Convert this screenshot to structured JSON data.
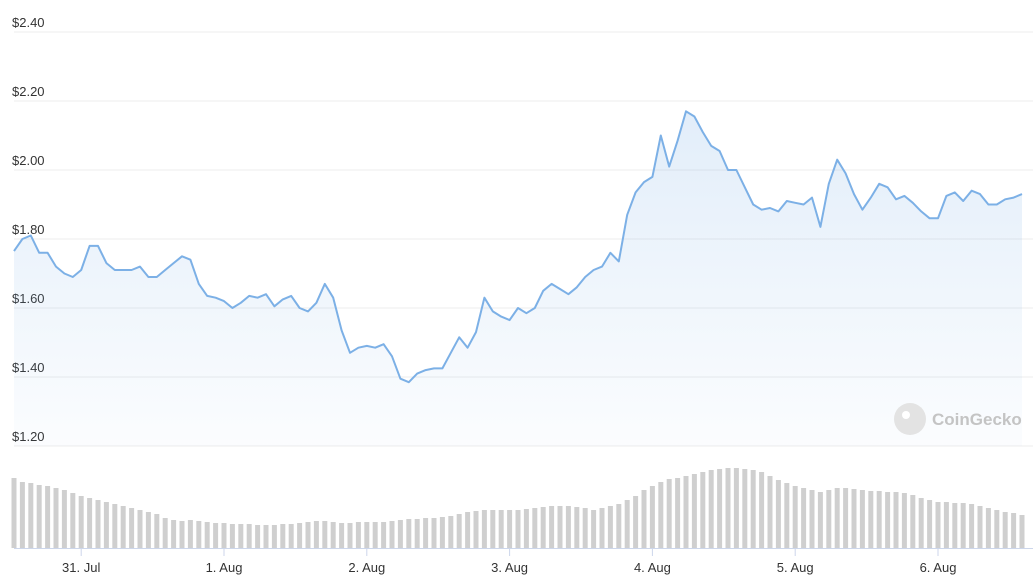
{
  "chart_data": {
    "type": "line",
    "watermark": "CoinGecko",
    "line_color": "#7cb0e6",
    "volume_color": "#cfcfcf",
    "grid": true,
    "ylim": [
      1.2,
      2.4
    ],
    "yticks": [
      {
        "value": 1.2,
        "label": "$1.20"
      },
      {
        "value": 1.4,
        "label": "$1.40"
      },
      {
        "value": 1.6,
        "label": "$1.60"
      },
      {
        "value": 1.8,
        "label": "$1.80"
      },
      {
        "value": 2.0,
        "label": "$2.00"
      },
      {
        "value": 2.2,
        "label": "$2.20"
      },
      {
        "value": 2.4,
        "label": "$2.40"
      }
    ],
    "categories": [
      null,
      null,
      null,
      null,
      null,
      null,
      null,
      null,
      "31. Jul",
      null,
      null,
      null,
      null,
      null,
      null,
      null,
      null,
      null,
      null,
      null,
      null,
      null,
      null,
      null,
      null,
      "1. Aug",
      null,
      null,
      null,
      null,
      null,
      null,
      null,
      null,
      null,
      null,
      null,
      null,
      null,
      null,
      null,
      null,
      "2. Aug",
      null,
      null,
      null,
      null,
      null,
      null,
      null,
      null,
      null,
      null,
      null,
      null,
      null,
      null,
      null,
      null,
      "3. Aug",
      null,
      null,
      null,
      null,
      null,
      null,
      null,
      null,
      null,
      null,
      null,
      null,
      null,
      null,
      null,
      null,
      "4. Aug",
      null,
      null,
      null,
      null,
      null,
      null,
      null,
      null,
      null,
      null,
      null,
      null,
      null,
      null,
      null,
      null,
      "5. Aug",
      null,
      null,
      null,
      null,
      null,
      null,
      null,
      null,
      null,
      null,
      null,
      null,
      null,
      null,
      null,
      null,
      "6. Aug",
      null,
      null,
      null,
      null,
      null,
      null,
      null,
      null,
      null,
      null
    ],
    "values": [
      1.765,
      1.8,
      1.81,
      1.76,
      1.76,
      1.72,
      1.7,
      1.69,
      1.71,
      1.78,
      1.78,
      1.73,
      1.71,
      1.71,
      1.71,
      1.72,
      1.69,
      1.69,
      1.71,
      1.73,
      1.75,
      1.74,
      1.67,
      1.635,
      1.63,
      1.62,
      1.6,
      1.615,
      1.635,
      1.63,
      1.64,
      1.605,
      1.625,
      1.635,
      1.6,
      1.59,
      1.615,
      1.67,
      1.63,
      1.535,
      1.47,
      1.485,
      1.49,
      1.485,
      1.495,
      1.46,
      1.395,
      1.385,
      1.41,
      1.42,
      1.425,
      1.425,
      1.47,
      1.515,
      1.485,
      1.53,
      1.63,
      1.59,
      1.575,
      1.565,
      1.6,
      1.585,
      1.6,
      1.65,
      1.67,
      1.655,
      1.64,
      1.66,
      1.69,
      1.71,
      1.72,
      1.76,
      1.735,
      1.87,
      1.935,
      1.965,
      1.98,
      2.1,
      2.01,
      2.085,
      2.17,
      2.155,
      2.11,
      2.07,
      2.055,
      2.0,
      2.0,
      1.95,
      1.9,
      1.885,
      1.89,
      1.88,
      1.91,
      1.905,
      1.9,
      1.92,
      1.835,
      1.96,
      2.03,
      1.99,
      1.93,
      1.885,
      1.92,
      1.96,
      1.95,
      1.915,
      1.925,
      1.905,
      1.88,
      1.86,
      1.86,
      1.925,
      1.935,
      1.91,
      1.94,
      1.93,
      1.9,
      1.9,
      1.915,
      1.92,
      1.93
    ],
    "volume": [
      70,
      66,
      65,
      63,
      62,
      60,
      58,
      55,
      52,
      50,
      48,
      46,
      44,
      42,
      40,
      38,
      36,
      34,
      30,
      28,
      27,
      28,
      27,
      26,
      25,
      25,
      24,
      24,
      24,
      23,
      23,
      23,
      24,
      24,
      25,
      26,
      27,
      27,
      26,
      25,
      25,
      26,
      26,
      26,
      26,
      27,
      28,
      29,
      29,
      30,
      30,
      31,
      32,
      34,
      36,
      37,
      38,
      38,
      38,
      38,
      38,
      39,
      40,
      41,
      42,
      42,
      42,
      41,
      40,
      38,
      40,
      42,
      44,
      48,
      52,
      58,
      62,
      66,
      69,
      70,
      72,
      74,
      76,
      78,
      79,
      80,
      80,
      79,
      78,
      76,
      72,
      68,
      65,
      62,
      60,
      58,
      56,
      58,
      60,
      60,
      59,
      58,
      57,
      57,
      56,
      56,
      55,
      53,
      50,
      48,
      46,
      46,
      45,
      45,
      44,
      42,
      40,
      38,
      36,
      35,
      33
    ]
  }
}
